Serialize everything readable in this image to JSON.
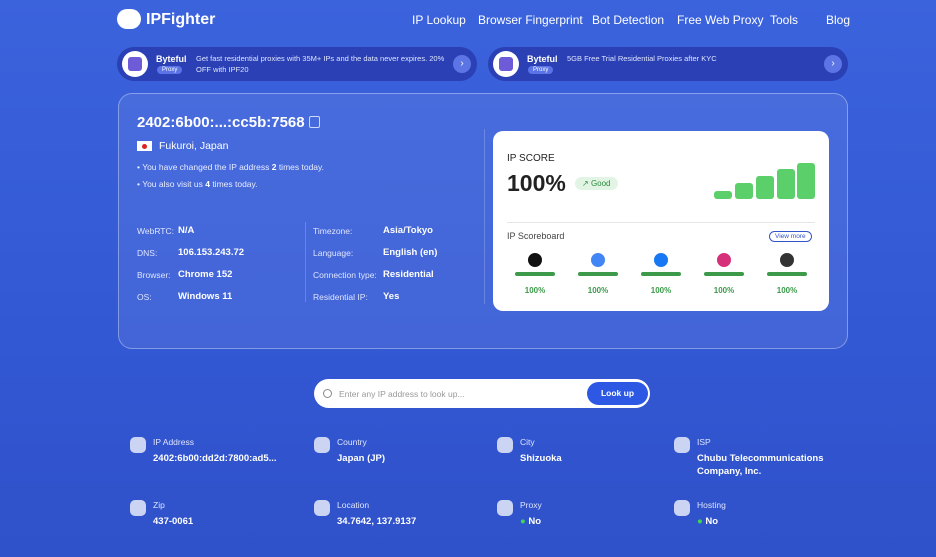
{
  "header": {
    "logo": "IPFighter",
    "nav": [
      "IP Lookup",
      "Browser Fingerprint",
      "Bot Detection",
      "Free Web Proxy",
      "Tools",
      "Blog"
    ]
  },
  "ads": [
    {
      "brand": "Byteful",
      "tag": "Proxy",
      "text": "Get fast residential proxies with 35M+ IPs and the data never expires. 20% OFF with IPF20"
    },
    {
      "brand": "Byteful",
      "tag": "Proxy",
      "text": "5GB Free Trial Residential Proxies after KYC"
    }
  ],
  "ip_card": {
    "ip": "2402:6b00:...:cc5b:7568",
    "location": "Fukuroi, Japan",
    "notes": [
      {
        "before": "You have changed the IP address",
        "count": 2,
        "after": "times today."
      },
      {
        "before": "You also visit us",
        "count": 4,
        "after": "times today."
      }
    ],
    "details_left": [
      {
        "label": "WebRTC:",
        "value": "N/A"
      },
      {
        "label": "DNS:",
        "value": "106.153.243.72"
      },
      {
        "label": "Browser:",
        "value": "Chrome 152"
      },
      {
        "label": "OS:",
        "value": "Windows 11"
      }
    ],
    "details_right": [
      {
        "label": "Timezone:",
        "value": "Asia/Tokyo"
      },
      {
        "label": "Language:",
        "value": "English (en)"
      },
      {
        "label": "Connection type:",
        "value": "Residential"
      },
      {
        "label": "Residential IP:",
        "value": "Yes"
      }
    ]
  },
  "score": {
    "label": "IP SCORE",
    "value": "100%",
    "badge": "Good",
    "scoreboard": "IP Scoreboard",
    "view_more": "View more",
    "items": [
      "100%",
      "100%",
      "100%",
      "100%",
      "100%"
    ]
  },
  "search": {
    "placeholder": "Enter any IP address to look up...",
    "button": "Look up"
  },
  "info": [
    {
      "label": "IP Address",
      "value": "2402:6b00:dd2d:7800:ad5..."
    },
    {
      "label": "Country",
      "value": "Japan (JP)"
    },
    {
      "label": "City",
      "value": "Shizuoka"
    },
    {
      "label": "ISP",
      "value": "Chubu Telecommunications Company, Inc."
    },
    {
      "label": "Zip",
      "value": "437-0061"
    },
    {
      "label": "Location",
      "value": "34.7642, 137.9137"
    },
    {
      "label": "Proxy",
      "value": "No"
    },
    {
      "label": "Hosting",
      "value": "No"
    }
  ]
}
